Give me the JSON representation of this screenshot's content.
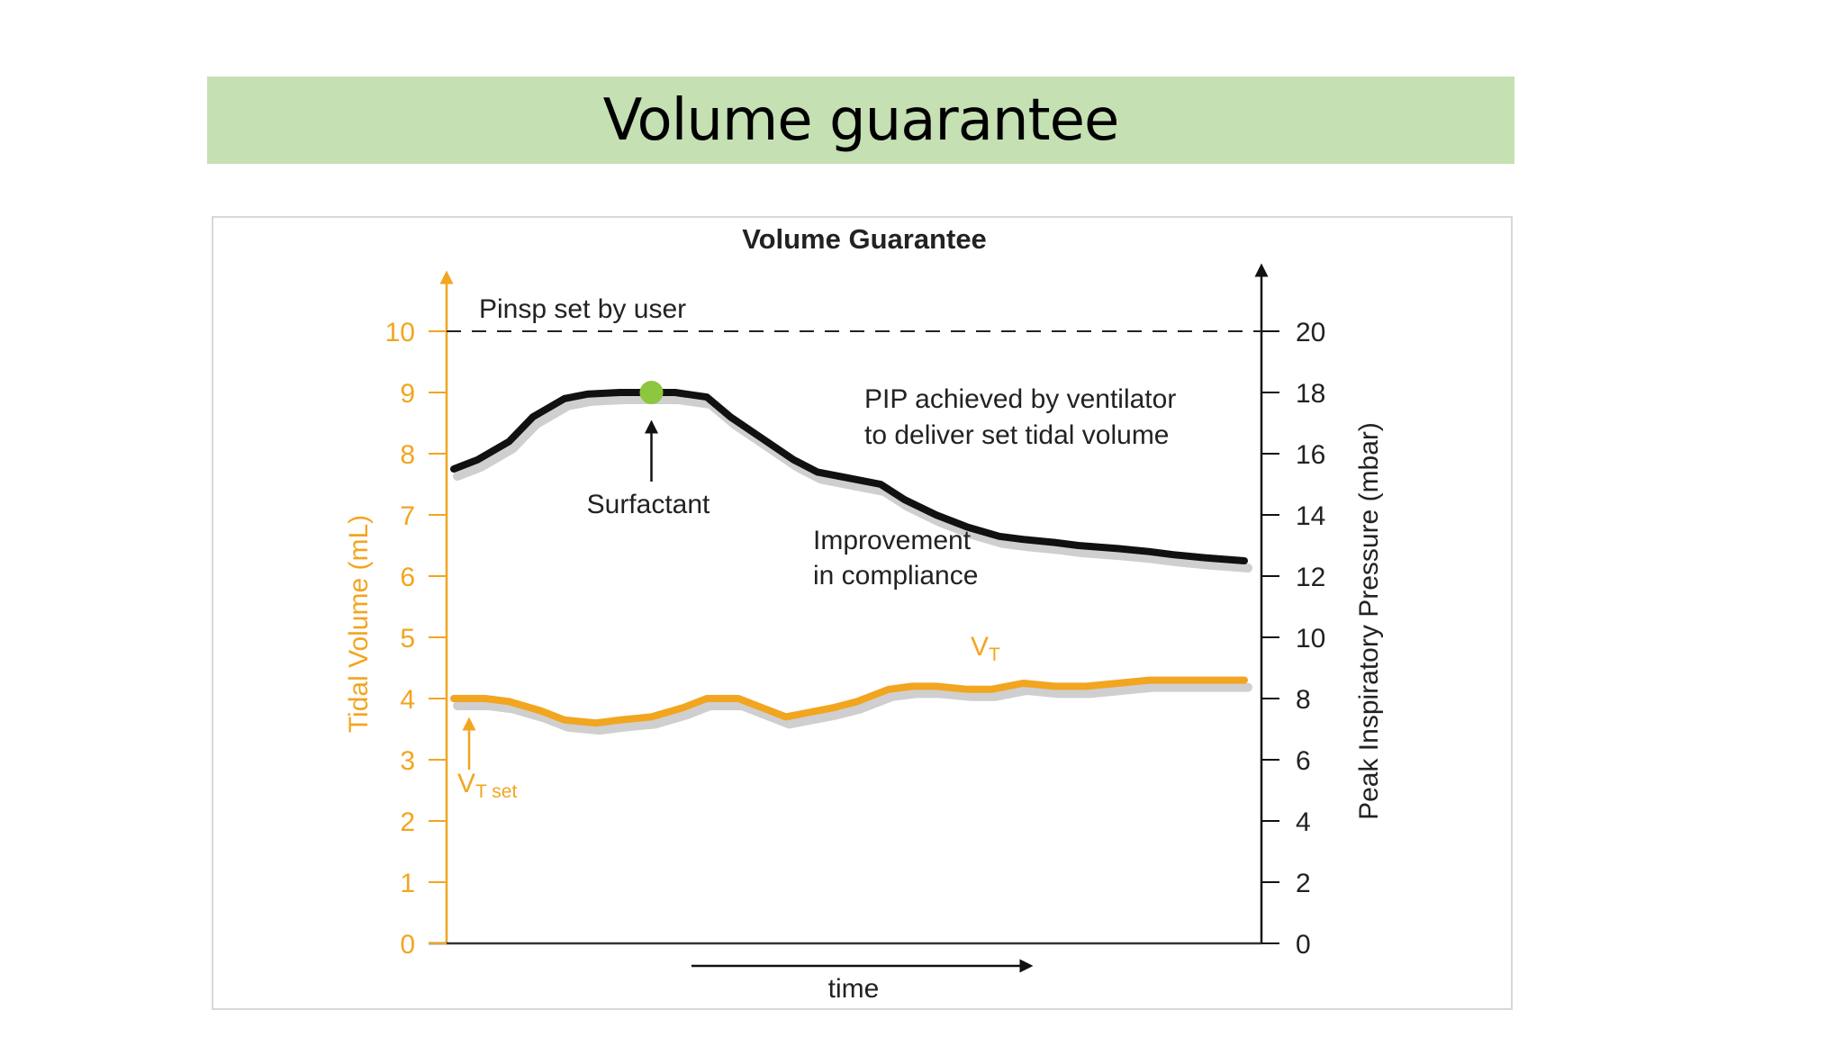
{
  "slide": {
    "title": "Volume guarantee"
  },
  "chart_data": {
    "type": "line",
    "title": "Volume Guarantee",
    "xlabel": "time",
    "ylabel_left": "Tidal Volume (mL)",
    "ylabel_right": "Peak Inspiratory Pressure (mbar)",
    "y_left_range": [
      0,
      10
    ],
    "y_right_range": [
      0,
      20
    ],
    "y_left_ticks": [
      "0",
      "1",
      "2",
      "3",
      "4",
      "5",
      "6",
      "7",
      "8",
      "9",
      "10"
    ],
    "y_right_ticks": [
      "0",
      "2",
      "4",
      "6",
      "8",
      "10",
      "12",
      "14",
      "16",
      "18",
      "20"
    ],
    "grid": false,
    "colors": {
      "tidal_volume": "#f2a51f",
      "pressure": "#111111",
      "marker": "#8dc63f",
      "shadow": "#cfcfcf"
    },
    "series": [
      {
        "name": "PIP",
        "axis": "right",
        "x": [
          0,
          3,
          7,
          10,
          14,
          17,
          21,
          25,
          28,
          32,
          35,
          39,
          43,
          46,
          50,
          54,
          57,
          61,
          65,
          69,
          72,
          76,
          79,
          84,
          88,
          91,
          95,
          100
        ],
        "values": [
          15.5,
          15.8,
          16.4,
          17.2,
          17.8,
          17.95,
          18.0,
          18.0,
          18.0,
          17.85,
          17.2,
          16.5,
          15.8,
          15.4,
          15.2,
          15.0,
          14.5,
          14.0,
          13.6,
          13.3,
          13.2,
          13.1,
          13.0,
          12.9,
          12.8,
          12.7,
          12.6,
          12.5
        ]
      },
      {
        "name": "VT",
        "axis": "left",
        "x": [
          0,
          4,
          7,
          11,
          14,
          18,
          21,
          25,
          29,
          32,
          36,
          39,
          42,
          44,
          48,
          51,
          55,
          58,
          61,
          65,
          68,
          72,
          76,
          80,
          84,
          88,
          92,
          96,
          100
        ],
        "values": [
          4.0,
          4.0,
          3.95,
          3.8,
          3.65,
          3.6,
          3.65,
          3.7,
          3.85,
          4.0,
          4.0,
          3.85,
          3.7,
          3.75,
          3.85,
          3.95,
          4.15,
          4.2,
          4.2,
          4.15,
          4.15,
          4.25,
          4.2,
          4.2,
          4.25,
          4.3,
          4.3,
          4.3,
          4.3
        ]
      }
    ],
    "reference_line": {
      "label": "Pinsp set by user",
      "axis": "right",
      "value": 20
    },
    "annotations": {
      "surfactant": "Surfactant",
      "pip_line1": "PIP achieved by ventilator",
      "pip_line2": "to deliver set tidal volume",
      "improvement_line1": "Improvement",
      "improvement_line2": "in compliance",
      "vt_label_main": "V",
      "vt_label_sub": "T",
      "vt_set_main": "V",
      "vt_set_sub": "T set"
    },
    "surfactant_marker_x": 25
  }
}
